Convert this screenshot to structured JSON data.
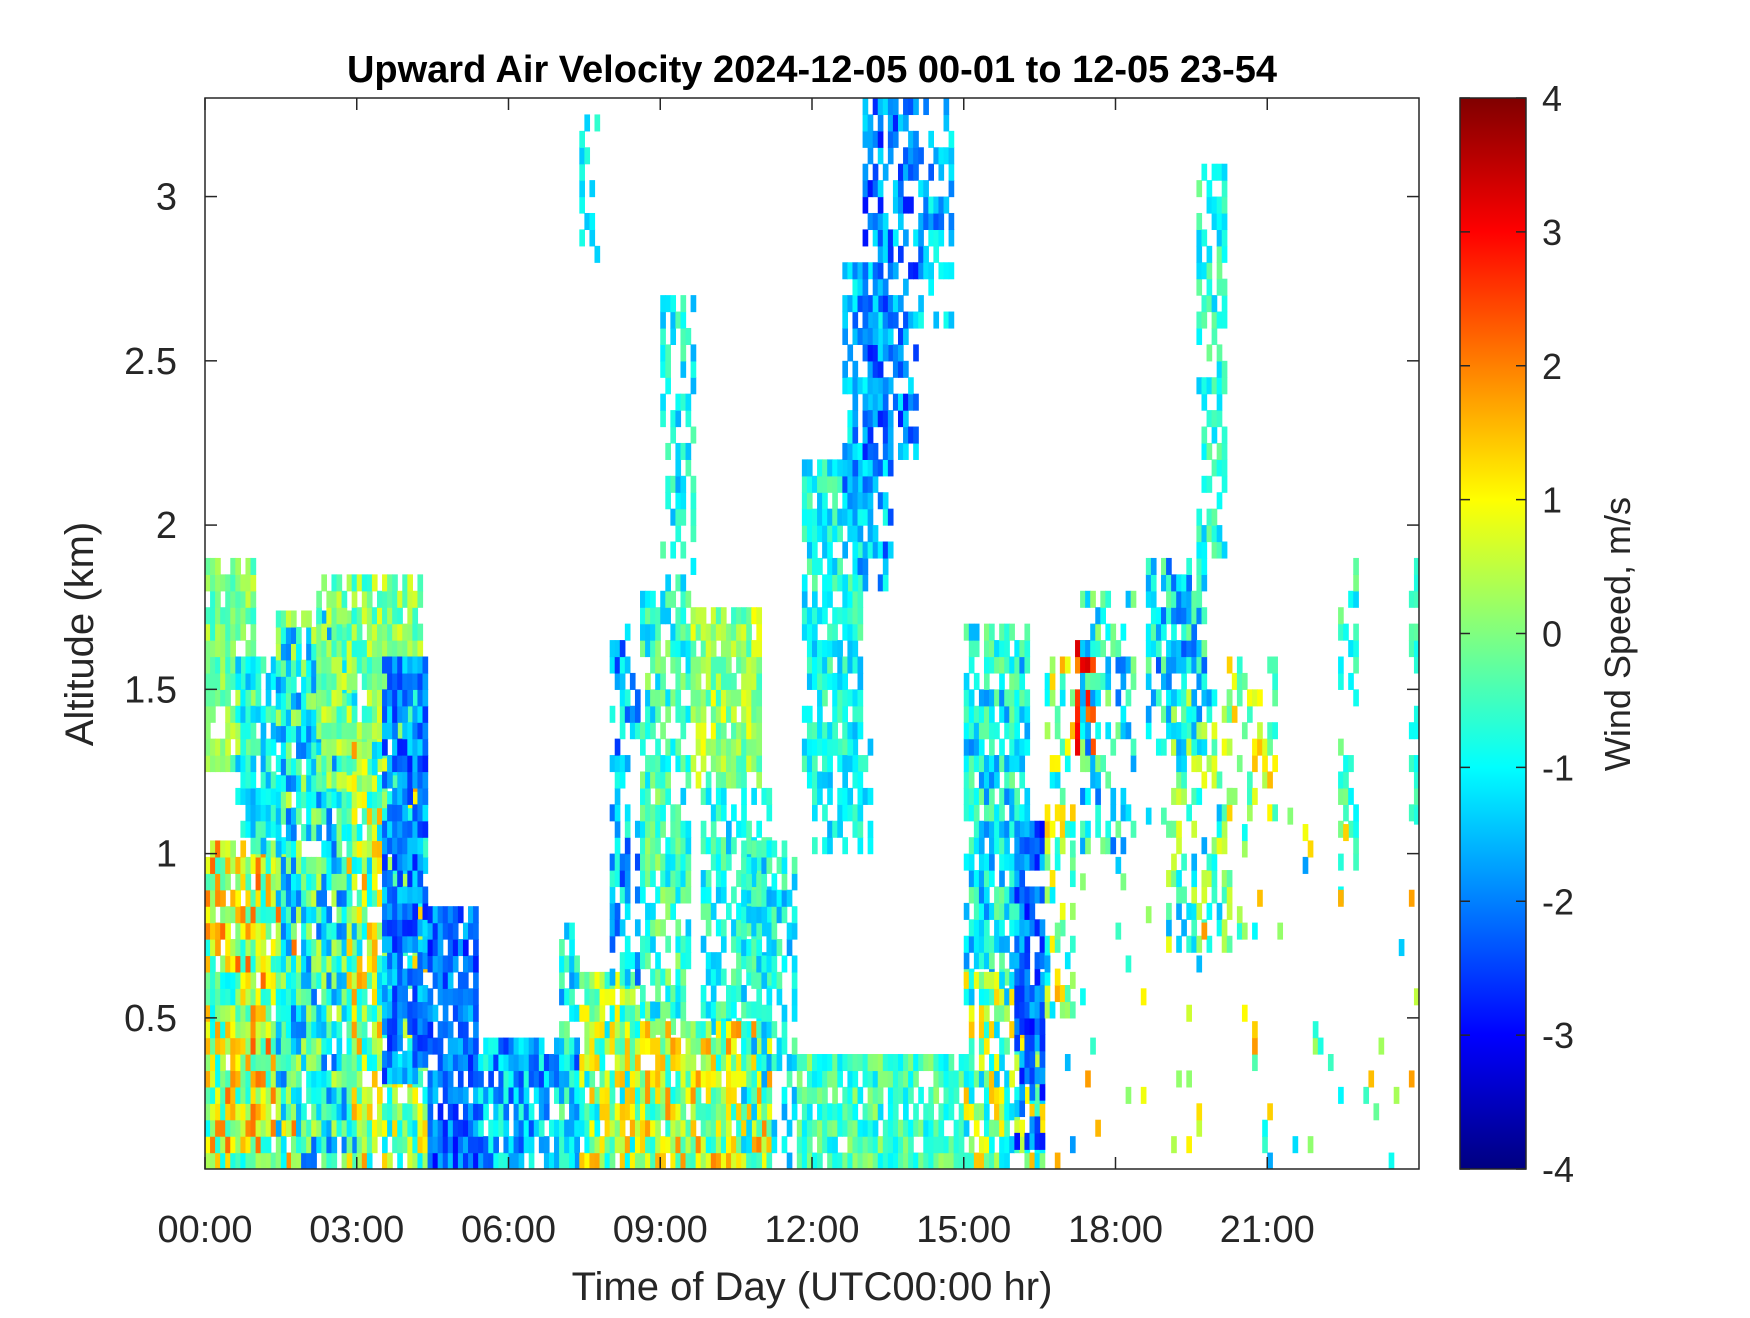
{
  "chart_data": {
    "type": "heatmap",
    "title": "Upward Air Velocity 2024-12-05 00-01 to 12-05 23-54",
    "xlabel": "Time of Day (UTC00:00 hr)",
    "ylabel": "Altitude (km)",
    "colorbar_label": "Wind Speed, m/s",
    "xlim": [
      0,
      24
    ],
    "ylim": [
      0.04,
      3.3
    ],
    "clim": [
      -4,
      4
    ],
    "colormap": "jet",
    "x_ticks": [
      0,
      3,
      6,
      9,
      12,
      15,
      18,
      21
    ],
    "x_tick_labels": [
      "00:00",
      "03:00",
      "06:00",
      "09:00",
      "12:00",
      "15:00",
      "18:00",
      "21:00"
    ],
    "y_ticks": [
      0.5,
      1,
      1.5,
      2,
      2.5,
      3
    ],
    "y_tick_labels": [
      "0.5",
      "1",
      "1.5",
      "2",
      "2.5",
      "3"
    ],
    "colorbar_ticks": [
      4,
      3,
      2,
      1,
      0,
      -1,
      -2,
      -3,
      -4
    ],
    "colorbar_tick_labels": [
      "4",
      "3",
      "2",
      "1",
      "0",
      "-1",
      "-2",
      "-3",
      "-4"
    ],
    "grid": false,
    "time_step_hr": 0.1,
    "altitude_step_km": 0.05,
    "regions": [
      {
        "t": [
          0.0,
          1.0
        ],
        "alt": [
          1.25,
          1.9
        ],
        "mean": 0.0,
        "spread": 0.7,
        "fill": 0.85
      },
      {
        "t": [
          0.0,
          1.8
        ],
        "alt": [
          0.04,
          1.0
        ],
        "mean": 0.6,
        "spread": 1.7,
        "fill": 0.9
      },
      {
        "t": [
          0.6,
          1.6
        ],
        "alt": [
          1.0,
          1.6
        ],
        "mean": -1.0,
        "spread": 0.7,
        "fill": 0.75
      },
      {
        "t": [
          1.4,
          3.0
        ],
        "alt": [
          0.04,
          1.7
        ],
        "mean": -0.8,
        "spread": 1.4,
        "fill": 0.88
      },
      {
        "t": [
          2.2,
          4.3
        ],
        "alt": [
          1.2,
          1.85
        ],
        "mean": 0.0,
        "spread": 0.8,
        "fill": 0.85
      },
      {
        "t": [
          2.8,
          4.4
        ],
        "alt": [
          0.04,
          1.3
        ],
        "mean": 0.2,
        "spread": 1.6,
        "fill": 0.8
      },
      {
        "t": [
          3.5,
          4.4
        ],
        "alt": [
          0.3,
          1.6
        ],
        "mean": -2.0,
        "spread": 0.8,
        "fill": 0.85
      },
      {
        "t": [
          4.4,
          5.4
        ],
        "alt": [
          0.04,
          0.8
        ],
        "mean": -2.2,
        "spread": 0.8,
        "fill": 0.85
      },
      {
        "t": [
          5.4,
          7.4
        ],
        "alt": [
          0.04,
          0.4
        ],
        "mean": -1.6,
        "spread": 1.0,
        "fill": 0.85
      },
      {
        "t": [
          7.0,
          7.4
        ],
        "alt": [
          0.04,
          0.75
        ],
        "mean": -1.0,
        "spread": 1.0,
        "fill": 0.7
      },
      {
        "t": [
          7.4,
          7.8
        ],
        "alt": [
          2.8,
          3.25
        ],
        "mean": -1.0,
        "spread": 0.5,
        "fill": 0.4
      },
      {
        "t": [
          7.4,
          8.6
        ],
        "alt": [
          0.04,
          0.6
        ],
        "mean": 0.2,
        "spread": 1.5,
        "fill": 0.85
      },
      {
        "t": [
          8.0,
          8.6
        ],
        "alt": [
          0.6,
          1.7
        ],
        "mean": -1.6,
        "spread": 1.0,
        "fill": 0.55
      },
      {
        "t": [
          8.6,
          9.6
        ],
        "alt": [
          0.45,
          1.8
        ],
        "mean": -0.6,
        "spread": 0.9,
        "fill": 0.75
      },
      {
        "t": [
          9.0,
          9.7
        ],
        "alt": [
          1.8,
          2.7
        ],
        "mean": -1.0,
        "spread": 0.7,
        "fill": 0.4
      },
      {
        "t": [
          9.6,
          11.0
        ],
        "alt": [
          1.2,
          1.75
        ],
        "mean": 0.2,
        "spread": 0.8,
        "fill": 0.85
      },
      {
        "t": [
          9.8,
          11.2
        ],
        "alt": [
          0.45,
          1.2
        ],
        "mean": -0.8,
        "spread": 0.8,
        "fill": 0.65
      },
      {
        "t": [
          8.4,
          11.2
        ],
        "alt": [
          0.04,
          0.45
        ],
        "mean": 0.5,
        "spread": 1.5,
        "fill": 0.9
      },
      {
        "t": [
          10.6,
          11.7
        ],
        "alt": [
          0.04,
          1.0
        ],
        "mean": -1.0,
        "spread": 0.8,
        "fill": 0.6
      },
      {
        "t": [
          11.7,
          15.0
        ],
        "alt": [
          0.04,
          0.38
        ],
        "mean": -0.5,
        "spread": 0.8,
        "fill": 0.85
      },
      {
        "t": [
          11.8,
          13.0
        ],
        "alt": [
          1.2,
          2.2
        ],
        "mean": -0.9,
        "spread": 0.7,
        "fill": 0.75
      },
      {
        "t": [
          12.0,
          13.2
        ],
        "alt": [
          1.0,
          1.4
        ],
        "mean": -1.1,
        "spread": 0.7,
        "fill": 0.6
      },
      {
        "t": [
          12.6,
          13.6
        ],
        "alt": [
          1.8,
          2.8
        ],
        "mean": -1.6,
        "spread": 0.9,
        "fill": 0.6
      },
      {
        "t": [
          13.0,
          14.1
        ],
        "alt": [
          2.2,
          3.3
        ],
        "mean": -2.0,
        "spread": 0.9,
        "fill": 0.6
      },
      {
        "t": [
          14.1,
          14.8
        ],
        "alt": [
          2.6,
          3.3
        ],
        "mean": -1.6,
        "spread": 0.8,
        "fill": 0.45
      },
      {
        "t": [
          15.0,
          16.3
        ],
        "alt": [
          0.6,
          1.7
        ],
        "mean": -1.0,
        "spread": 1.0,
        "fill": 0.75
      },
      {
        "t": [
          15.0,
          16.6
        ],
        "alt": [
          0.04,
          0.6
        ],
        "mean": 0.0,
        "spread": 1.6,
        "fill": 0.75
      },
      {
        "t": [
          16.0,
          16.6
        ],
        "alt": [
          0.1,
          1.1
        ],
        "mean": -2.2,
        "spread": 0.8,
        "fill": 0.75
      },
      {
        "t": [
          16.6,
          17.2
        ],
        "alt": [
          0.5,
          1.6
        ],
        "mean": 0.2,
        "spread": 1.5,
        "fill": 0.5
      },
      {
        "t": [
          17.2,
          17.6
        ],
        "alt": [
          1.3,
          1.65
        ],
        "mean": 2.8,
        "spread": 0.9,
        "fill": 0.85
      },
      {
        "t": [
          17.3,
          18.4
        ],
        "alt": [
          1.0,
          1.8
        ],
        "mean": -1.0,
        "spread": 1.2,
        "fill": 0.45
      },
      {
        "t": [
          18.6,
          19.8
        ],
        "alt": [
          1.3,
          1.9
        ],
        "mean": -1.2,
        "spread": 1.2,
        "fill": 0.7
      },
      {
        "t": [
          19.0,
          20.3
        ],
        "alt": [
          0.7,
          1.5
        ],
        "mean": -0.5,
        "spread": 1.4,
        "fill": 0.45
      },
      {
        "t": [
          19.6,
          20.2
        ],
        "alt": [
          1.9,
          3.1
        ],
        "mean": -0.8,
        "spread": 0.7,
        "fill": 0.55
      },
      {
        "t": [
          20.2,
          21.2
        ],
        "alt": [
          1.1,
          1.6
        ],
        "mean": 0.4,
        "spread": 1.2,
        "fill": 0.45
      },
      {
        "t": [
          22.4,
          22.8
        ],
        "alt": [
          0.85,
          1.9
        ],
        "mean": -0.7,
        "spread": 0.7,
        "fill": 0.4
      },
      {
        "t": [
          23.8,
          24.0
        ],
        "alt": [
          1.1,
          1.95
        ],
        "mean": -0.5,
        "spread": 0.5,
        "fill": 0.4
      },
      {
        "t": [
          16.6,
          24.0
        ],
        "alt": [
          0.04,
          1.1
        ],
        "mean": 0.0,
        "spread": 1.8,
        "fill": 0.04
      }
    ]
  }
}
